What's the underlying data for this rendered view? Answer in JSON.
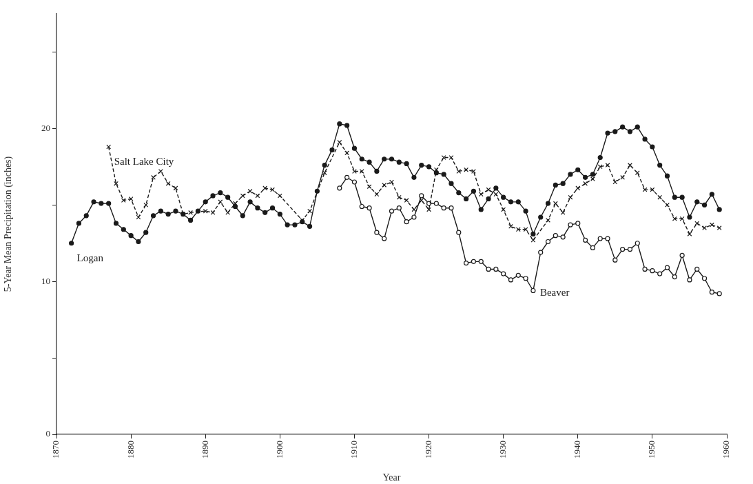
{
  "chart_data": {
    "type": "line",
    "xlabel": "Year",
    "ylabel": "5-Year Mean Precipitation (inches)",
    "xlim": [
      1870,
      1960
    ],
    "xticks": [
      1870,
      1880,
      1890,
      1900,
      1910,
      1920,
      1930,
      1940,
      1950,
      1960
    ],
    "ylim": [
      0,
      27.5
    ],
    "yticks": [
      0,
      {
        "value": 5,
        "label": null
      },
      10,
      {
        "value": 15,
        "label": null
      },
      20,
      {
        "value": 25,
        "label": null
      }
    ],
    "grid": false,
    "legend": false,
    "series": [
      {
        "name": "Logan",
        "color": "#1a1a1a",
        "marker": "circle",
        "line_style": "solid",
        "x": [
          1872,
          1873,
          1874,
          1875,
          1876,
          1877,
          1878,
          1879,
          1880,
          1881,
          1882,
          1883,
          1884,
          1885,
          1886,
          1887,
          1888,
          1889,
          1890,
          1891,
          1892,
          1893,
          1894,
          1895,
          1896,
          1897,
          1898,
          1899,
          1900,
          1901,
          1902,
          1903,
          1904,
          1905,
          1906,
          1907,
          1908,
          1909,
          1910,
          1911,
          1912,
          1913,
          1914,
          1915,
          1916,
          1917,
          1918,
          1919,
          1920,
          1921,
          1922,
          1923,
          1924,
          1925,
          1926,
          1927,
          1928,
          1929,
          1930,
          1931,
          1932,
          1933,
          1934,
          1935,
          1936,
          1937,
          1938,
          1939,
          1940,
          1941,
          1942,
          1943,
          1944,
          1945,
          1946,
          1947,
          1948,
          1949,
          1950,
          1951,
          1952,
          1953,
          1954,
          1955,
          1956,
          1957,
          1958,
          1959
        ],
        "values": [
          12.5,
          13.8,
          14.3,
          15.2,
          15.1,
          15.1,
          13.8,
          13.4,
          13.0,
          12.6,
          13.2,
          14.3,
          14.6,
          14.4,
          14.6,
          14.4,
          14.0,
          14.6,
          15.2,
          15.6,
          15.8,
          15.5,
          14.9,
          14.3,
          15.2,
          14.8,
          14.5,
          14.8,
          14.4,
          13.7,
          13.7,
          13.9,
          13.6,
          15.9,
          17.6,
          18.6,
          20.3,
          20.2,
          18.7,
          18.0,
          17.8,
          17.2,
          18.0,
          18.0,
          17.8,
          17.7,
          16.8,
          17.6,
          17.5,
          17.1,
          17.0,
          16.4,
          15.8,
          15.4,
          15.9,
          14.7,
          15.4,
          16.1,
          15.5,
          15.2,
          15.2,
          14.6,
          13.1,
          14.2,
          15.1,
          16.3,
          16.4,
          17.0,
          17.3,
          16.8,
          17.0,
          18.1,
          19.7,
          19.8,
          20.1,
          19.8,
          20.1,
          19.3,
          18.8,
          17.6,
          16.9,
          15.5,
          15.5,
          14.2,
          15.2,
          15.0,
          15.7,
          14.7
        ]
      },
      {
        "name": "Salt Lake City",
        "color": "#1a1a1a",
        "marker": "cross",
        "line_style": "dashed",
        "x": [
          1877,
          1878,
          1879,
          1880,
          1881,
          1882,
          1883,
          1884,
          1885,
          1886,
          1887,
          1888,
          1890,
          1891,
          1892,
          1893,
          1894,
          1895,
          1896,
          1897,
          1898,
          1899,
          1900,
          1903,
          1904,
          1906,
          1908,
          1909,
          1910,
          1911,
          1912,
          1913,
          1914,
          1915,
          1916,
          1917,
          1918,
          1919,
          1920,
          1921,
          1922,
          1923,
          1924,
          1925,
          1926,
          1927,
          1928,
          1929,
          1930,
          1931,
          1932,
          1933,
          1934,
          1936,
          1937,
          1938,
          1939,
          1940,
          1941,
          1942,
          1943,
          1944,
          1945,
          1946,
          1947,
          1948,
          1949,
          1950,
          1951,
          1952,
          1953,
          1954,
          1955,
          1956,
          1957,
          1958,
          1959
        ],
        "values": [
          18.8,
          16.4,
          15.3,
          15.4,
          14.2,
          15.0,
          16.8,
          17.2,
          16.4,
          16.1,
          14.4,
          14.5,
          14.6,
          14.5,
          15.2,
          14.5,
          15.1,
          15.6,
          15.9,
          15.6,
          16.1,
          16.0,
          15.6,
          14.0,
          14.6,
          17.1,
          19.1,
          18.4,
          17.2,
          17.2,
          16.2,
          15.7,
          16.3,
          16.5,
          15.5,
          15.3,
          14.7,
          15.3,
          14.7,
          17.3,
          18.1,
          18.1,
          17.2,
          17.3,
          17.2,
          15.7,
          16.0,
          15.7,
          14.7,
          13.6,
          13.4,
          13.4,
          12.7,
          14.0,
          15.1,
          14.5,
          15.5,
          16.1,
          16.4,
          16.7,
          17.5,
          17.6,
          16.5,
          16.8,
          17.6,
          17.1,
          16.0,
          16.0,
          15.5,
          15.0,
          14.1,
          14.1,
          13.1,
          13.8,
          13.5,
          13.7,
          13.5
        ]
      },
      {
        "name": "Beaver",
        "color": "#1a1a1a",
        "marker": "circle",
        "line_style": "solid",
        "x": [
          1908,
          1909,
          1910,
          1911,
          1912,
          1913,
          1914,
          1915,
          1916,
          1917,
          1918,
          1919,
          1920,
          1921,
          1922,
          1923,
          1924,
          1925,
          1926,
          1927,
          1928,
          1929,
          1930,
          1931,
          1932,
          1933,
          1934,
          1935,
          1936,
          1937,
          1938,
          1939,
          1940,
          1941,
          1942,
          1943,
          1944,
          1945,
          1946,
          1947,
          1948,
          1949,
          1950,
          1951,
          1952,
          1953,
          1954,
          1955,
          1956,
          1957,
          1958,
          1959
        ],
        "values": [
          16.1,
          16.8,
          16.5,
          14.9,
          14.8,
          13.2,
          12.8,
          14.6,
          14.8,
          13.9,
          14.2,
          15.6,
          15.1,
          15.1,
          14.8,
          14.8,
          13.2,
          11.2,
          11.3,
          11.3,
          10.8,
          10.8,
          10.5,
          10.1,
          10.4,
          10.2,
          9.4,
          11.9,
          12.6,
          13.0,
          12.9,
          13.7,
          13.8,
          12.7,
          12.2,
          12.8,
          12.8,
          11.4,
          12.1,
          12.1,
          12.5,
          10.8,
          10.7,
          10.5,
          10.9,
          10.3,
          11.7,
          10.1,
          10.8,
          10.2,
          9.3,
          9.2
        ]
      }
    ]
  }
}
